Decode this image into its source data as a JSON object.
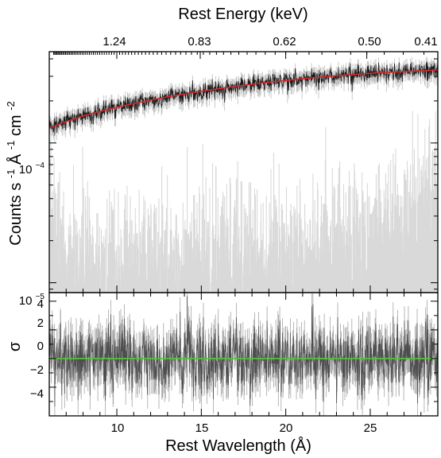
{
  "chart_data": [
    {
      "type": "line",
      "panel": "spectrum",
      "title": "",
      "top_axis": {
        "label": "Rest Energy (keV)",
        "ticks": [
          {
            "energy_keV": 1.24,
            "label": "1.24"
          },
          {
            "energy_keV": 0.83,
            "label": "0.83"
          },
          {
            "energy_keV": 0.62,
            "label": "0.62"
          },
          {
            "energy_keV": 0.5,
            "label": "0.50"
          },
          {
            "energy_keV": 0.41,
            "label": "0.41"
          }
        ]
      },
      "ylabel": "Counts s⁻¹ Å⁻¹ cm⁻²",
      "ylabel_parts": {
        "counts": "Counts s",
        "counts_exp": "-1",
        "angstrom": " Å",
        "angstrom_exp": "-1",
        "area": " cm",
        "area_exp": "-2"
      },
      "yscale": "log",
      "ylim": [
        8.5e-06,
        0.00045
      ],
      "y_ticks": [
        {
          "value": 0.0001,
          "base": "10",
          "exp": "−4"
        },
        {
          "value": 1e-05,
          "base": "10",
          "exp": "−5"
        }
      ],
      "xlim": [
        6,
        29
      ],
      "grid": false,
      "legend": "none",
      "series": [
        {
          "role": "data",
          "color": "#1a1a1a",
          "x": [
            6,
            6.5,
            7,
            7.5,
            8,
            8.5,
            9,
            9.5,
            10,
            10.5,
            11,
            11.5,
            12,
            12.5,
            13,
            13.5,
            14,
            14.5,
            15,
            15.5,
            16,
            16.5,
            17,
            17.5,
            18,
            18.5,
            19,
            19.5,
            20,
            20.5,
            21,
            21.5,
            22,
            22.5,
            23,
            23.5,
            24,
            24.5,
            25,
            25.5,
            26,
            26.5,
            27,
            27.5,
            28,
            28.5,
            29
          ],
          "y": [
            0.000128,
            0.000135,
            0.000142,
            0.000149,
            0.000156,
            0.000162,
            0.000168,
            0.000174,
            0.00018,
            0.000186,
            0.000191,
            0.000197,
            0.000203,
            0.000208,
            0.000214,
            0.000219,
            0.000224,
            0.000229,
            0.000234,
            0.000239,
            0.000244,
            0.000249,
            0.000254,
            0.000259,
            0.000263,
            0.000268,
            0.000272,
            0.000276,
            0.00028,
            0.000284,
            0.000288,
            0.000292,
            0.000296,
            0.0003,
            0.000303,
            0.000306,
            0.000309,
            0.000312,
            0.000315,
            0.000318,
            0.00032,
            0.000322,
            0.000324,
            0.000326,
            0.000328,
            0.00033,
            0.000332
          ]
        },
        {
          "role": "model",
          "color": "#d62728",
          "x": [
            6,
            6.5,
            7,
            7.5,
            8,
            8.5,
            9,
            9.5,
            10,
            10.5,
            11,
            11.5,
            12,
            12.5,
            13,
            13.5,
            14,
            14.5,
            15,
            15.5,
            16,
            16.5,
            17,
            17.5,
            18,
            18.5,
            19,
            19.5,
            20,
            20.5,
            21,
            21.5,
            22,
            22.5,
            23,
            23.5,
            24,
            24.5,
            25,
            25.5,
            26,
            26.5,
            27,
            27.5,
            28,
            28.5,
            29
          ],
          "y": [
            0.000128,
            0.000135,
            0.000142,
            0.000149,
            0.000156,
            0.000162,
            0.000168,
            0.000174,
            0.00018,
            0.000186,
            0.000191,
            0.000197,
            0.000203,
            0.000208,
            0.000214,
            0.000219,
            0.000224,
            0.000229,
            0.000234,
            0.000239,
            0.000244,
            0.000249,
            0.000254,
            0.000259,
            0.000263,
            0.000268,
            0.000272,
            0.000276,
            0.00028,
            0.000284,
            0.000288,
            0.000292,
            0.000296,
            0.0003,
            0.000303,
            0.000306,
            0.000309,
            0.000312,
            0.000315,
            0.000318,
            0.00032,
            0.000322,
            0.000324,
            0.000326,
            0.000328,
            0.00033,
            0.000332
          ]
        },
        {
          "role": "errors",
          "color": "#d9d9d9",
          "x": [
            6,
            7,
            8,
            9,
            10,
            11,
            12,
            13,
            14,
            15,
            16,
            17,
            18,
            19,
            20,
            21,
            22,
            23,
            24,
            25,
            26,
            27,
            27.5,
            28,
            29
          ],
          "y": [
            3.4e-05,
            1.5e-05,
            1.7e-05,
            1.6e-05,
            1.7e-05,
            1.6e-05,
            1.7e-05,
            1.6e-05,
            1.7e-05,
            1.8e-05,
            1.9e-05,
            2e-05,
            2.1e-05,
            2.1e-05,
            2.2e-05,
            2.2e-05,
            2.3e-05,
            2.4e-05,
            2.5e-05,
            2.6e-05,
            2.8e-05,
            3.1e-05,
            4.2e-05,
            4.6e-05,
            5e-05
          ]
        }
      ]
    },
    {
      "type": "line",
      "panel": "residuals",
      "title": "",
      "xlabel": "Rest Wavelength (Å)",
      "ylabel": "σ",
      "xlim": [
        6,
        29
      ],
      "ylim": [
        -4,
        4.6
      ],
      "x_ticks": [
        {
          "value": 10,
          "label": "10"
        },
        {
          "value": 15,
          "label": "15"
        },
        {
          "value": 20,
          "label": "20"
        },
        {
          "value": 25,
          "label": "25"
        }
      ],
      "y_ticks": [
        {
          "value": 4,
          "label": "4"
        },
        {
          "value": 2,
          "label": "2"
        },
        {
          "value": 0,
          "label": "0"
        },
        {
          "value": -2,
          "label": "−2"
        },
        {
          "value": -4,
          "label": "−4"
        }
      ],
      "grid": false,
      "legend": "none",
      "series": [
        {
          "role": "residuals",
          "color": "#4d4d4d",
          "x": [
            6,
            7,
            8,
            9,
            10,
            11,
            12,
            13,
            14,
            15,
            16,
            17,
            18,
            19,
            20,
            21,
            22,
            23,
            24,
            25,
            26,
            27,
            28,
            29
          ],
          "y": [
            0,
            0,
            0,
            0,
            0,
            0,
            0,
            0,
            0,
            0,
            0,
            0,
            0,
            0,
            0,
            0,
            0,
            0,
            0,
            0,
            0,
            0,
            0,
            0
          ]
        },
        {
          "role": "zero-line",
          "color": "#55c13c",
          "x": [
            6,
            29
          ],
          "y": [
            0,
            0
          ]
        }
      ]
    }
  ]
}
